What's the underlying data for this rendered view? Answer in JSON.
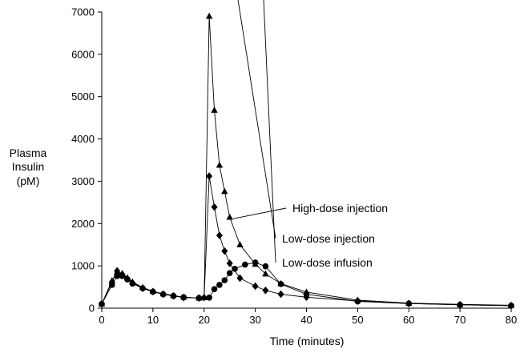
{
  "chart_data": {
    "type": "line",
    "title": "",
    "xlabel": "Time (minutes)",
    "ylabel_lines": [
      "Plasma",
      "Insulin",
      "(pM)"
    ],
    "xlim": [
      0,
      80
    ],
    "ylim": [
      0,
      7000
    ],
    "xticks": [
      0,
      10,
      20,
      30,
      40,
      50,
      60,
      70,
      80
    ],
    "yticks": [
      0,
      1000,
      2000,
      3000,
      4000,
      5000,
      6000,
      7000
    ],
    "grid": false,
    "series": [
      {
        "name": "High-dose injection",
        "marker": "triangle",
        "x": [
          0,
          2,
          3,
          4,
          5,
          6,
          8,
          10,
          12,
          14,
          16,
          19,
          20,
          21,
          22,
          23,
          24,
          25,
          27,
          30,
          32,
          35,
          40,
          50,
          60,
          70,
          80
        ],
        "y": [
          100,
          650,
          860,
          820,
          720,
          620,
          490,
          400,
          340,
          300,
          260,
          240,
          250,
          6900,
          4680,
          3380,
          2760,
          2150,
          1500,
          1040,
          810,
          580,
          380,
          190,
          120,
          90,
          70
        ]
      },
      {
        "name": "Low-dose injection",
        "marker": "diamond",
        "x": [
          0,
          2,
          3,
          4,
          5,
          6,
          8,
          10,
          12,
          14,
          16,
          19,
          20,
          21,
          22,
          23,
          24,
          25,
          27,
          30,
          32,
          35,
          40,
          50,
          60,
          70,
          80
        ],
        "y": [
          100,
          620,
          880,
          800,
          700,
          600,
          470,
          390,
          330,
          290,
          250,
          240,
          250,
          3120,
          2390,
          1720,
          1350,
          1060,
          710,
          520,
          420,
          330,
          260,
          170,
          110,
          80,
          60
        ]
      },
      {
        "name": "Low-dose infusion",
        "marker": "circle",
        "x": [
          0,
          2,
          3,
          4,
          5,
          6,
          8,
          10,
          12,
          14,
          16,
          19,
          21,
          22,
          23,
          24,
          25,
          26,
          28,
          30,
          32,
          35,
          40,
          50,
          60,
          70,
          80
        ],
        "y": [
          100,
          550,
          760,
          760,
          680,
          580,
          470,
          390,
          330,
          290,
          260,
          240,
          250,
          450,
          550,
          660,
          830,
          930,
          1030,
          1080,
          990,
          570,
          330,
          160,
          110,
          80,
          60
        ]
      }
    ],
    "annotations": [
      {
        "text": "High-dose injection",
        "series_index": 0,
        "point_x": 25
      },
      {
        "text": "Low-dose injection",
        "series_index": 1,
        "point_x": 26
      },
      {
        "text": "Low-dose infusion",
        "series_index": 2,
        "point_x": 31
      }
    ]
  }
}
